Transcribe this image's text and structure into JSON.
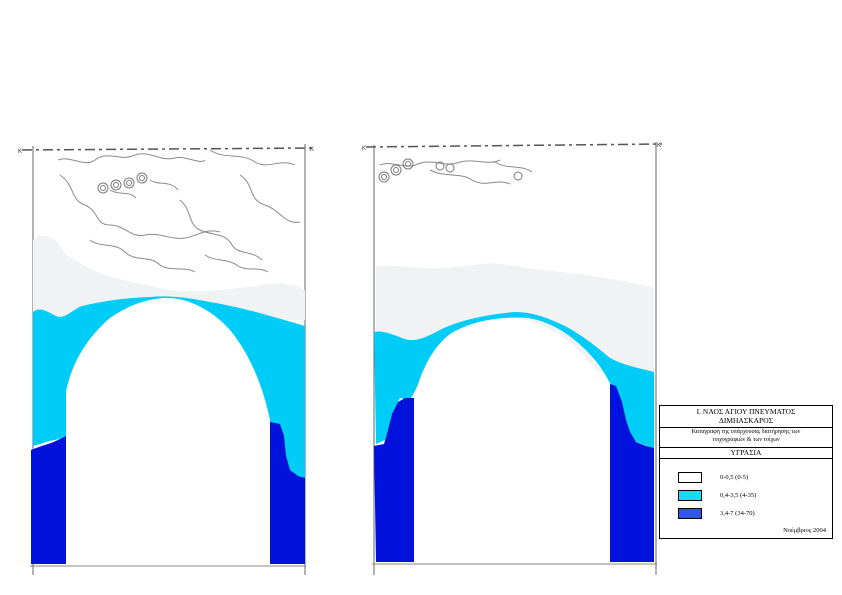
{
  "figure": {
    "section_marker": "K",
    "views": [
      "left",
      "right"
    ]
  },
  "legend": {
    "title_line1": "Ι. ΝΑΟΣ ΑΓΙΟΥ ΠΝΕΥΜΑΤΟΣ",
    "title_line2": "ΔΙΜΗΑΣΚΑΡΟΣ",
    "subtitle_line1": "Καταγραφή της υπάρχουσας διατήρησης των",
    "subtitle_line2": "τοιχογραφιών & των τοίχων",
    "variable": "ΥΓΡΑΣΙΑ",
    "items": [
      {
        "label": "0-0,5 (0-5)",
        "color": "#ffffff"
      },
      {
        "label": "0,4-3,5 (4-35)",
        "color": "#12ddf4"
      },
      {
        "label": "3,4-7 (34-70)",
        "color": "#2f57ea"
      }
    ],
    "date": "Νοέμβριος 2004"
  },
  "colors": {
    "low": "#f1f2f3",
    "medium": "#00ccf8",
    "high": "#0012dc",
    "outline": "#555555"
  }
}
